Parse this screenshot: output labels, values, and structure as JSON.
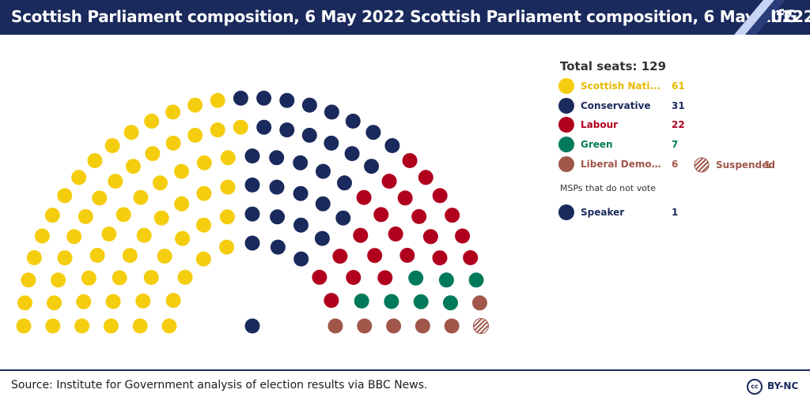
{
  "header": {
    "title": "Scottish Parliament composition, 6 May 2022 Scottish Parliament composition, 6 May 20222",
    "logo": "IfG"
  },
  "legend": {
    "total_label": "Total seats: 129",
    "parties": [
      {
        "name": "Scottish Nati...",
        "seats": "61",
        "color": "#f5cd0f"
      },
      {
        "name": "Conservative",
        "seats": "31",
        "color": "#1b2a5c"
      },
      {
        "name": "Labour",
        "seats": "22",
        "color": "#b0001e"
      },
      {
        "name": "Green",
        "seats": "7",
        "color": "#007a5a"
      },
      {
        "name": "Liberal Democrat",
        "seats": "6",
        "color": "#a0574a"
      }
    ],
    "suspended": {
      "name": "Suspended",
      "seats": "1",
      "color": "#a0574a"
    },
    "non_voting_title": "MSPs that do not vote",
    "speaker": {
      "name": "Speaker",
      "seats": "1",
      "color": "#1b2a5c"
    }
  },
  "footer": {
    "source": "Source: Institute for Government analysis of election results via BBC News.",
    "license_icon": "cc",
    "license": "BY-NC"
  },
  "chart_data": {
    "type": "parliament",
    "title": "Scottish Parliament composition, 6 May 2022 Scottish Parliament composition, 6 May 20222",
    "total_seats": 129,
    "series": [
      {
        "name": "Scottish Nati...",
        "values": [
          61
        ]
      },
      {
        "name": "Conservative",
        "values": [
          31
        ]
      },
      {
        "name": "Labour",
        "values": [
          22
        ]
      },
      {
        "name": "Green",
        "values": [
          7
        ]
      },
      {
        "name": "Liberal Democrat",
        "values": [
          6
        ]
      },
      {
        "name": "Suspended",
        "values": [
          1
        ]
      },
      {
        "name": "Speaker",
        "values": [
          1
        ]
      }
    ]
  }
}
